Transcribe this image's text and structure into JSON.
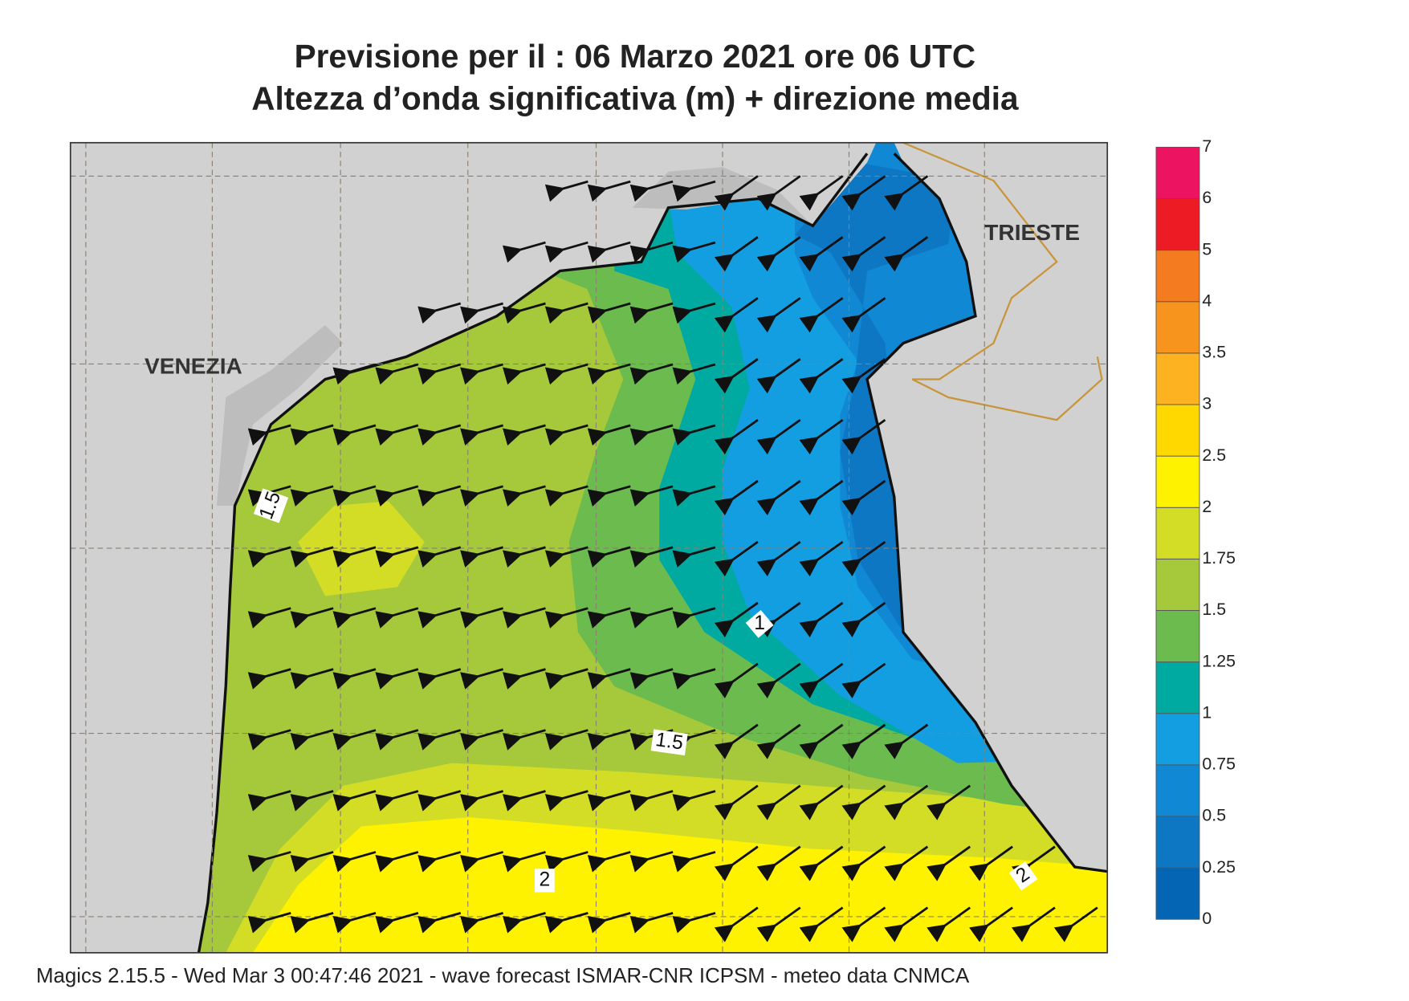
{
  "header": {
    "line1": "Previsione per il  :  06   Marzo   2021   ore 06 UTC",
    "line2": "Altezza d’onda significativa (m) + direzione media"
  },
  "places": [
    "VENEZIA",
    "TRIESTE"
  ],
  "contour_labels": [
    "1.5",
    "1",
    "1.5",
    "2",
    "2"
  ],
  "colorbar": {
    "ticks": [
      0,
      0.25,
      0.5,
      0.75,
      1,
      1.25,
      1.5,
      1.75,
      2,
      2.5,
      3,
      3.5,
      4,
      5,
      6,
      7
    ],
    "colors": [
      "#0565b5",
      "#0d77c4",
      "#1188d3",
      "#129ee0",
      "#00aaa0",
      "#6cbb4e",
      "#a5c93b",
      "#d3dd25",
      "#fff200",
      "#ffd800",
      "#fcb221",
      "#f7941d",
      "#f47b20",
      "#ed1c24",
      "#ec1360"
    ]
  },
  "footer": "Magics 2.15.5 - Wed Mar  3 00:47:46 2021 - wave forecast  ISMAR-CNR  ICPSM - meteo data   CNMCA"
}
